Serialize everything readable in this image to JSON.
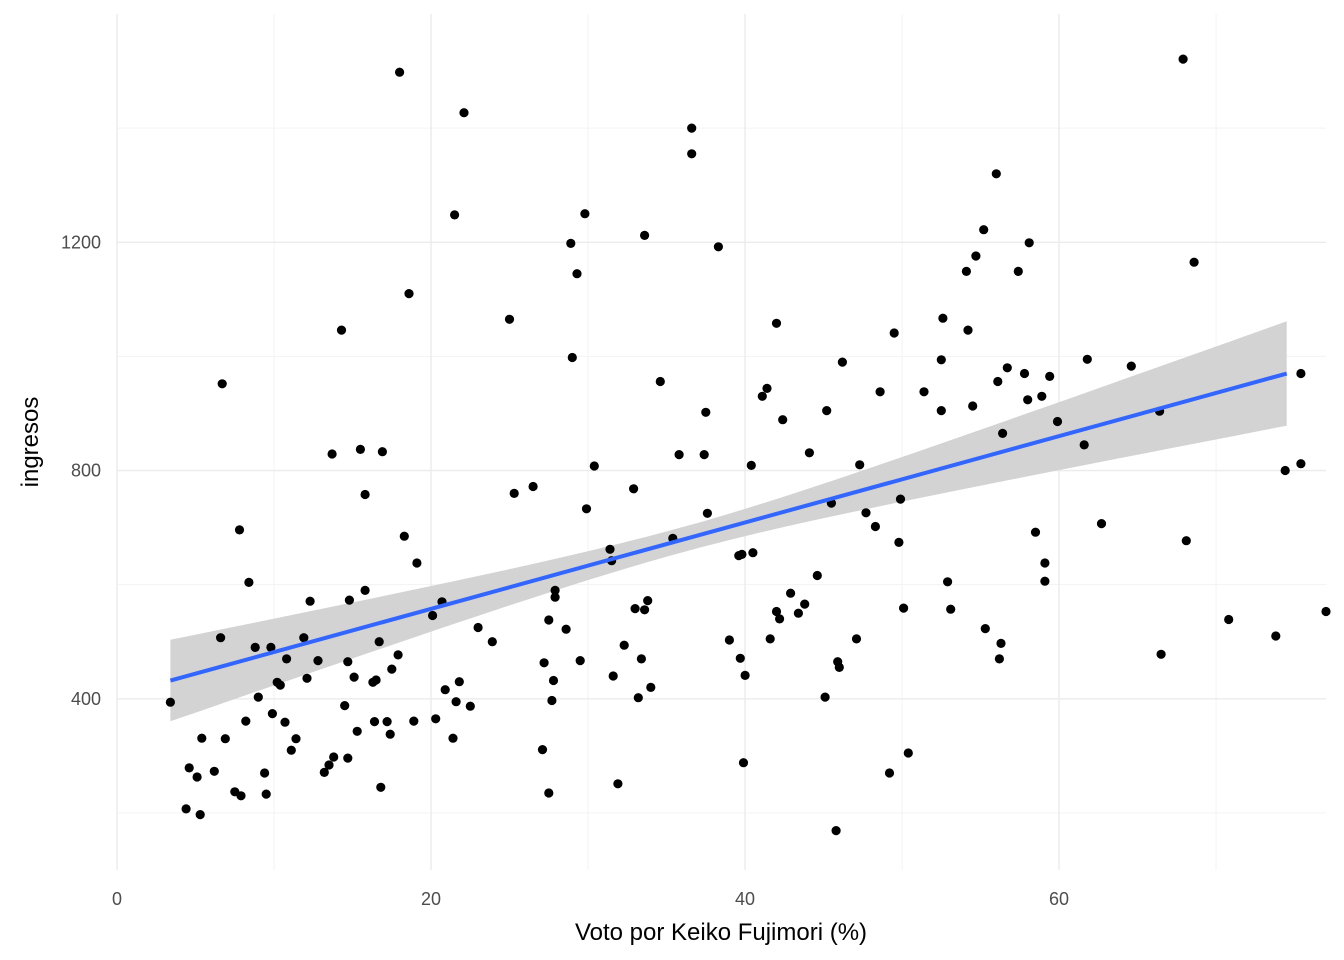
{
  "chart_data": {
    "type": "scatter",
    "title": "",
    "xlabel": "Voto por Keiko Fujimori (%)",
    "ylabel": "ingresos",
    "xlim": [
      0,
      77
    ],
    "ylim": [
      100,
      1600
    ],
    "xticks": [
      0,
      20,
      40,
      60
    ],
    "yticks": [
      400,
      800,
      1200
    ],
    "x_tick_labels": [
      "0",
      "20",
      "40",
      "60"
    ],
    "y_tick_labels": [
      "400",
      "800",
      "1200"
    ],
    "grid": true,
    "legend": "none",
    "colors": {
      "points": "#000000",
      "fit_line": "#3366ff",
      "confidence_band": "#d3d3d3",
      "grid": "#ebebeb"
    },
    "fit": {
      "method": "lm",
      "x": [
        3.4,
        74.5
      ],
      "y": [
        432,
        970
      ],
      "ci_lower": [
        360,
        880
      ],
      "ci_upper": [
        503,
        1063
      ]
    },
    "points": [
      [
        3.4,
        394
      ],
      [
        4.4,
        207
      ],
      [
        4.6,
        279
      ],
      [
        5.1,
        263
      ],
      [
        5.3,
        197
      ],
      [
        5.4,
        331
      ],
      [
        6.2,
        273
      ],
      [
        6.6,
        507
      ],
      [
        6.7,
        952
      ],
      [
        6.9,
        330
      ],
      [
        7.5,
        237
      ],
      [
        7.8,
        696
      ],
      [
        7.9,
        230
      ],
      [
        8.2,
        361
      ],
      [
        8.4,
        604
      ],
      [
        8.8,
        490
      ],
      [
        9.0,
        403
      ],
      [
        9.4,
        270
      ],
      [
        9.5,
        233
      ],
      [
        9.8,
        490
      ],
      [
        9.9,
        374
      ],
      [
        10.2,
        429
      ],
      [
        10.4,
        424
      ],
      [
        10.7,
        359
      ],
      [
        10.8,
        470
      ],
      [
        11.1,
        310
      ],
      [
        11.4,
        330
      ],
      [
        11.9,
        507
      ],
      [
        12.1,
        436
      ],
      [
        12.3,
        571
      ],
      [
        12.8,
        467
      ],
      [
        13.2,
        271
      ],
      [
        13.5,
        284
      ],
      [
        13.7,
        829
      ],
      [
        13.8,
        298
      ],
      [
        14.3,
        1046
      ],
      [
        14.5,
        388
      ],
      [
        14.7,
        465
      ],
      [
        14.7,
        296
      ],
      [
        14.8,
        573
      ],
      [
        15.1,
        438
      ],
      [
        15.3,
        343
      ],
      [
        15.5,
        837
      ],
      [
        15.8,
        758
      ],
      [
        15.8,
        590
      ],
      [
        16.3,
        429
      ],
      [
        16.4,
        360
      ],
      [
        16.5,
        433
      ],
      [
        16.7,
        500
      ],
      [
        16.8,
        245
      ],
      [
        16.9,
        833
      ],
      [
        17.2,
        360
      ],
      [
        17.4,
        338
      ],
      [
        17.5,
        452
      ],
      [
        17.9,
        477
      ],
      [
        18.0,
        1498
      ],
      [
        18.3,
        685
      ],
      [
        18.6,
        1110
      ],
      [
        18.9,
        361
      ],
      [
        19.1,
        638
      ],
      [
        20.1,
        546
      ],
      [
        20.3,
        365
      ],
      [
        20.7,
        570
      ],
      [
        20.9,
        416
      ],
      [
        21.4,
        331
      ],
      [
        21.5,
        1248
      ],
      [
        21.6,
        395
      ],
      [
        21.8,
        430
      ],
      [
        22.1,
        1427
      ],
      [
        22.5,
        387
      ],
      [
        23.0,
        525
      ],
      [
        23.9,
        500
      ],
      [
        25.0,
        1065
      ],
      [
        25.3,
        760
      ],
      [
        26.5,
        772
      ],
      [
        27.1,
        311
      ],
      [
        27.2,
        463
      ],
      [
        27.5,
        538
      ],
      [
        27.5,
        235
      ],
      [
        27.7,
        397
      ],
      [
        27.8,
        432
      ],
      [
        27.9,
        578
      ],
      [
        27.9,
        590
      ],
      [
        28.6,
        522
      ],
      [
        28.9,
        1198
      ],
      [
        29.0,
        998
      ],
      [
        29.3,
        1145
      ],
      [
        29.5,
        467
      ],
      [
        29.8,
        1250
      ],
      [
        29.9,
        733
      ],
      [
        30.4,
        808
      ],
      [
        31.4,
        662
      ],
      [
        31.5,
        642
      ],
      [
        31.6,
        440
      ],
      [
        31.9,
        251
      ],
      [
        32.3,
        494
      ],
      [
        32.9,
        768
      ],
      [
        33.0,
        558
      ],
      [
        33.2,
        402
      ],
      [
        33.4,
        470
      ],
      [
        33.6,
        556
      ],
      [
        33.6,
        1212
      ],
      [
        33.8,
        572
      ],
      [
        34.0,
        420
      ],
      [
        34.6,
        956
      ],
      [
        35.4,
        681
      ],
      [
        35.8,
        828
      ],
      [
        36.6,
        1400
      ],
      [
        36.6,
        1355
      ],
      [
        37.4,
        828
      ],
      [
        37.5,
        902
      ],
      [
        37.6,
        725
      ],
      [
        38.3,
        1192
      ],
      [
        39.0,
        503
      ],
      [
        39.6,
        651
      ],
      [
        39.7,
        471
      ],
      [
        39.8,
        653
      ],
      [
        39.9,
        288
      ],
      [
        40.0,
        441
      ],
      [
        40.4,
        809
      ],
      [
        40.5,
        656
      ],
      [
        41.1,
        930
      ],
      [
        41.4,
        944
      ],
      [
        41.6,
        505
      ],
      [
        42.0,
        553
      ],
      [
        42.0,
        1058
      ],
      [
        42.2,
        540
      ],
      [
        42.4,
        889
      ],
      [
        42.9,
        585
      ],
      [
        43.4,
        550
      ],
      [
        43.8,
        566
      ],
      [
        44.1,
        831
      ],
      [
        44.6,
        616
      ],
      [
        45.1,
        403
      ],
      [
        45.2,
        905
      ],
      [
        45.5,
        743
      ],
      [
        45.8,
        169
      ],
      [
        45.9,
        465
      ],
      [
        46.0,
        455
      ],
      [
        46.2,
        990
      ],
      [
        47.1,
        505
      ],
      [
        47.3,
        810
      ],
      [
        47.7,
        726
      ],
      [
        48.3,
        702
      ],
      [
        48.6,
        938
      ],
      [
        49.2,
        270
      ],
      [
        49.5,
        1041
      ],
      [
        49.8,
        674
      ],
      [
        49.9,
        750
      ],
      [
        50.1,
        559
      ],
      [
        50.4,
        305
      ],
      [
        51.4,
        938
      ],
      [
        52.5,
        905
      ],
      [
        52.5,
        994
      ],
      [
        52.6,
        1067
      ],
      [
        52.9,
        605
      ],
      [
        53.1,
        557
      ],
      [
        54.1,
        1149
      ],
      [
        54.2,
        1046
      ],
      [
        54.5,
        913
      ],
      [
        54.7,
        1176
      ],
      [
        55.2,
        1222
      ],
      [
        55.3,
        523
      ],
      [
        56.0,
        1320
      ],
      [
        56.1,
        956
      ],
      [
        56.2,
        470
      ],
      [
        56.3,
        497
      ],
      [
        56.4,
        865
      ],
      [
        56.7,
        980
      ],
      [
        57.4,
        1149
      ],
      [
        57.8,
        970
      ],
      [
        58.0,
        924
      ],
      [
        58.1,
        1199
      ],
      [
        58.5,
        692
      ],
      [
        58.9,
        930
      ],
      [
        59.1,
        638
      ],
      [
        59.1,
        606
      ],
      [
        59.4,
        965
      ],
      [
        59.9,
        886
      ],
      [
        61.6,
        845
      ],
      [
        61.8,
        995
      ],
      [
        62.7,
        707
      ],
      [
        64.6,
        983
      ],
      [
        66.4,
        904
      ],
      [
        66.5,
        478
      ],
      [
        67.9,
        1521
      ],
      [
        68.1,
        677
      ],
      [
        68.6,
        1165
      ],
      [
        70.8,
        539
      ],
      [
        73.8,
        510
      ],
      [
        74.4,
        800
      ],
      [
        75.4,
        812
      ],
      [
        75.4,
        970
      ],
      [
        77.0,
        553
      ]
    ]
  }
}
